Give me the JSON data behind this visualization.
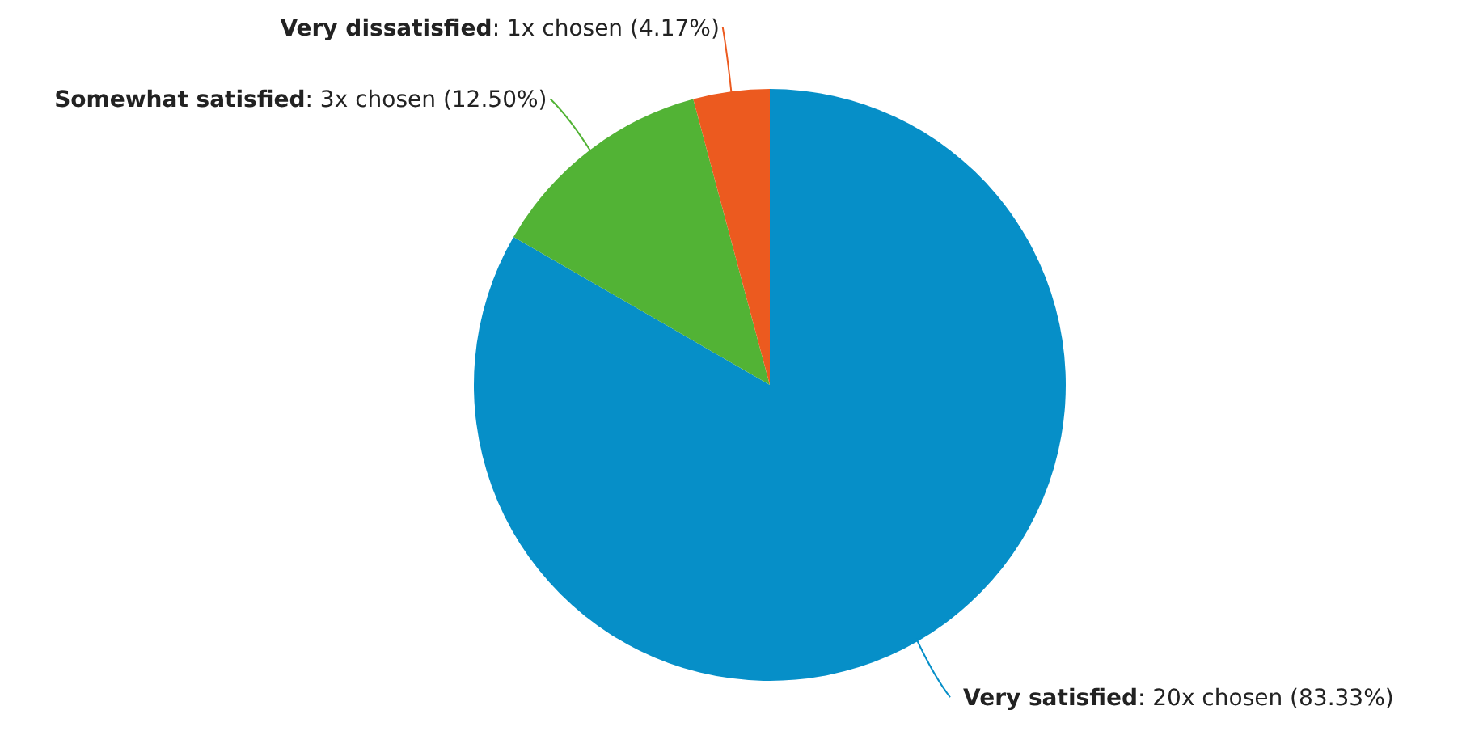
{
  "chart_data": {
    "type": "pie",
    "categories": [
      "Very satisfied",
      "Somewhat satisfied",
      "Very dissatisfied"
    ],
    "values": [
      20,
      3,
      1
    ],
    "colors": [
      "#068fc8",
      "#52b335",
      "#ec5a1f"
    ],
    "value_labels": [
      ": 20x chosen (83.33%)",
      ": 3x chosen (12.50%)",
      ": 1x chosen (4.17%)"
    ]
  }
}
